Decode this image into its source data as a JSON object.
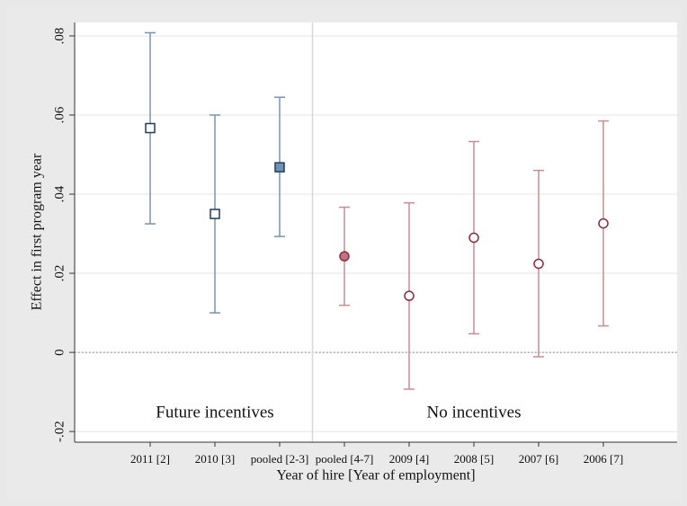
{
  "chart_data": {
    "type": "errorbar",
    "xlabel": "Year of hire [Year of employment]",
    "ylabel": "Effect in first program year",
    "categories": [
      "2011 [2]",
      "2010 [3]",
      "pooled [2-3]",
      "pooled [4-7]",
      "2009 [4]",
      "2008 [5]",
      "2007 [6]",
      "2006 [7]"
    ],
    "series": [
      {
        "name": "Future incentives",
        "color": "#7893b2",
        "marker_color": "#1f3d5e",
        "fill_color": "#7290b3",
        "marker": "square",
        "values": [
          0.0567,
          0.035,
          0.0468,
          null,
          null,
          null,
          null,
          null
        ],
        "lower": [
          0.0325,
          0.01,
          0.0293,
          null,
          null,
          null,
          null,
          null
        ],
        "upper": [
          0.0808,
          0.06,
          0.0645,
          null,
          null,
          null,
          null,
          null
        ],
        "filled": [
          false,
          false,
          true,
          null,
          null,
          null,
          null,
          null
        ]
      },
      {
        "name": "No incentives",
        "color": "#c98d8f",
        "marker_color": "#8a2a3c",
        "fill_color": "#c4747e",
        "marker": "circle",
        "values": [
          null,
          null,
          null,
          0.0243,
          0.0143,
          0.029,
          0.0224,
          0.0326
        ],
        "lower": [
          null,
          null,
          null,
          0.0119,
          -0.0093,
          0.0047,
          -0.0011,
          0.0067
        ],
        "upper": [
          null,
          null,
          null,
          0.0367,
          0.0378,
          0.0533,
          0.046,
          0.0585
        ],
        "filled": [
          null,
          null,
          null,
          true,
          false,
          false,
          false,
          false
        ]
      }
    ],
    "ylim": [
      -0.0227,
      0.0834
    ],
    "yticks": [
      {
        "value": -0.02,
        "label": "-.02"
      },
      0,
      {
        "value": 0.02,
        "label": ".02"
      },
      {
        "value": 0.04,
        "label": ".04"
      },
      {
        "value": 0.06,
        "label": ".06"
      },
      {
        "value": 0.08,
        "label": ".08"
      }
    ],
    "yline": 0,
    "grid": true
  }
}
